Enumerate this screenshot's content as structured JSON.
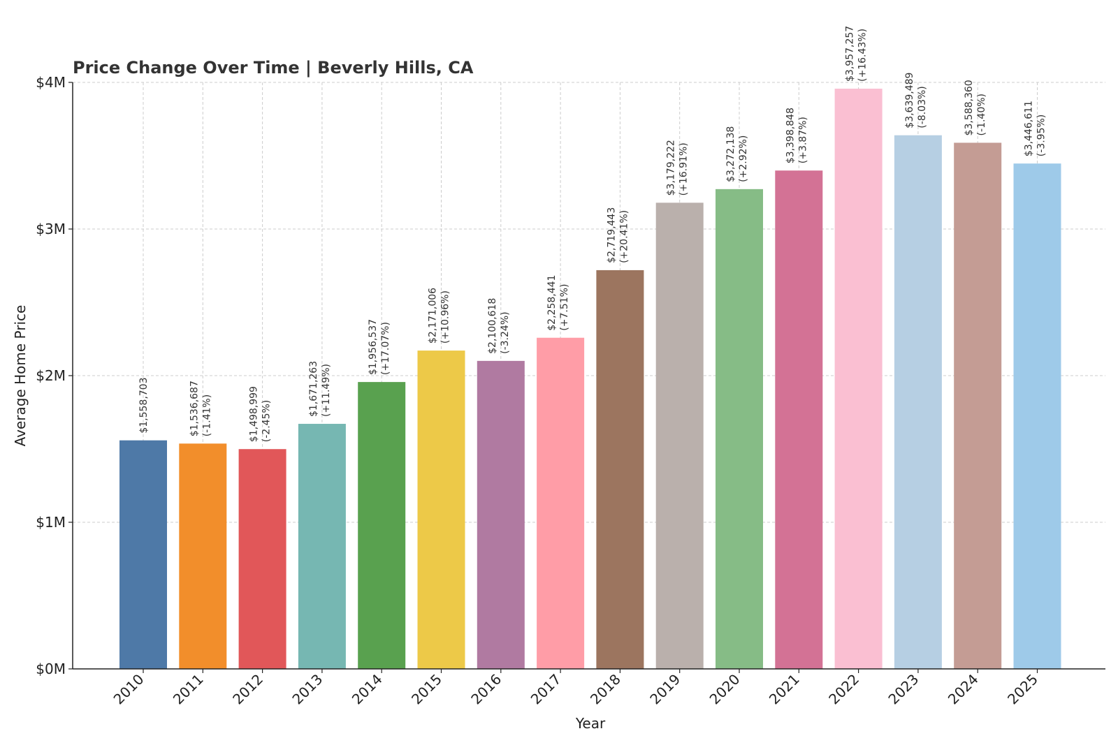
{
  "chart_data": {
    "type": "bar",
    "title": "Price Change Over Time | Beverly Hills, CA",
    "xlabel": "Year",
    "ylabel": "Average Home Price",
    "ylim": [
      0,
      4000000
    ],
    "grid": true,
    "yticks": [
      {
        "value": 0,
        "label": "$0M"
      },
      {
        "value": 1000000,
        "label": "$1M"
      },
      {
        "value": 2000000,
        "label": "$2M"
      },
      {
        "value": 3000000,
        "label": "$3M"
      },
      {
        "value": 4000000,
        "label": "$4M"
      }
    ],
    "categories": [
      "2010",
      "2011",
      "2012",
      "2013",
      "2014",
      "2015",
      "2016",
      "2017",
      "2018",
      "2019",
      "2020",
      "2021",
      "2022",
      "2023",
      "2024",
      "2025"
    ],
    "values": [
      1558703,
      1536687,
      1498999,
      1671263,
      1956537,
      2171006,
      2100618,
      2258441,
      2719443,
      3179222,
      3272138,
      3398848,
      3957257,
      3639489,
      3588360,
      3446611
    ],
    "value_labels": [
      "$1,558,703",
      "$1,536,687",
      "$1,498,999",
      "$1,671,263",
      "$1,956,537",
      "$2,171,006",
      "$2,100,618",
      "$2,258,441",
      "$2,719,443",
      "$3,179,222",
      "$3,272,138",
      "$3,398,848",
      "$3,957,257",
      "$3,639,489",
      "$3,588,360",
      "$3,446,611"
    ],
    "change_labels": [
      "",
      "(-1.41%)",
      "(-2.45%)",
      "(+11.49%)",
      "(+17.07%)",
      "(+10.96%)",
      "(-3.24%)",
      "(+7.51%)",
      "(+20.41%)",
      "(+16.91%)",
      "(+2.92%)",
      "(+3.87%)",
      "(+16.43%)",
      "(-8.03%)",
      "(-1.40%)",
      "(-3.95%)"
    ],
    "colors": [
      "#4e79a7",
      "#f28e2b",
      "#e15759",
      "#76b7b2",
      "#59a14f",
      "#edc948",
      "#b07aa1",
      "#ff9da7",
      "#9c755f",
      "#bab0ac",
      "#86bc86",
      "#d37295",
      "#fabfd2",
      "#b6cfe3",
      "#c49c94",
      "#9ecae9"
    ]
  }
}
